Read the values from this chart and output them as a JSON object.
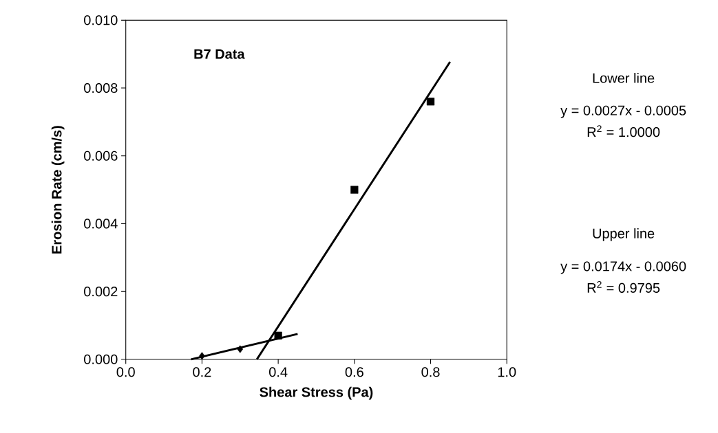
{
  "chart_data": {
    "type": "scatter",
    "xlabel": "Shear Stress (Pa)",
    "ylabel": "Erosion Rate (cm/s)",
    "xlim": [
      0,
      1
    ],
    "ylim": [
      0,
      0.01
    ],
    "xticks": [
      {
        "value": 0,
        "label": "0.0"
      },
      {
        "value": 0.2,
        "label": "0.2"
      },
      {
        "value": 0.4,
        "label": "0.4"
      },
      {
        "value": 0.6,
        "label": "0.6"
      },
      {
        "value": 0.8,
        "label": "0.8"
      },
      {
        "value": 1,
        "label": "1.0"
      }
    ],
    "yticks": [
      {
        "value": 0,
        "label": "0.000"
      },
      {
        "value": 0.002,
        "label": "0.002"
      },
      {
        "value": 0.004,
        "label": "0.004"
      },
      {
        "value": 0.006,
        "label": "0.006"
      },
      {
        "value": 0.008,
        "label": "0.008"
      },
      {
        "value": 0.01,
        "label": "0.010"
      }
    ],
    "grid": false,
    "series": [
      {
        "marker": "diamond",
        "color": "#000000",
        "x": [
          0.2,
          0.3
        ],
        "values": [
          0.0001,
          0.0003
        ]
      },
      {
        "marker": "square",
        "color": "#000000",
        "x": [
          0.4,
          0.6,
          0.8
        ],
        "values": [
          0.0007,
          0.005,
          0.0076
        ]
      },
      {
        "type": "line",
        "marker": "none",
        "color": "#000000",
        "x": [
          0.171,
          0.451
        ],
        "values": [
          0.0,
          0.00075
        ]
      },
      {
        "type": "line",
        "marker": "none",
        "color": "#000000",
        "x": [
          0.344,
          0.851
        ],
        "values": [
          0.0,
          0.00877
        ]
      }
    ],
    "annotations": [
      "B7 Data",
      "Lower line",
      "y = 0.0027x - 0.0005",
      "R$^{2}$ = 1.0000",
      "Upper line",
      "y = 0.0174x - 0.0060",
      "R$^{2}$ = 0.9795"
    ]
  }
}
